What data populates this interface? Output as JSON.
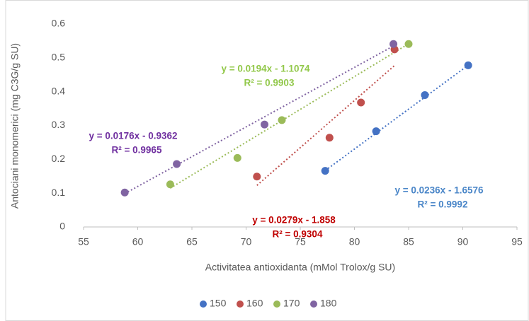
{
  "chart_data": {
    "type": "scatter",
    "x_label": "Activitatea antioxidanta (mMol Trolox/g SU)",
    "y_label": "Antociani monomerici (mg C3G/g SU)",
    "xlim": [
      55,
      95
    ],
    "xticks": [
      55,
      60,
      65,
      70,
      75,
      80,
      85,
      90,
      95
    ],
    "ylim": [
      0,
      0.6
    ],
    "yticks": [
      0,
      0.1,
      0.2,
      0.3,
      0.4,
      0.5,
      0.6
    ],
    "grid": false,
    "legend": "bottom",
    "series": [
      {
        "name": "150",
        "color": "#4472c4",
        "x": [
          77.3,
          82,
          86.5,
          90.5
        ],
        "values": [
          0.166,
          0.283,
          0.39,
          0.478
        ],
        "trendline": {
          "slope": 0.0236,
          "intercept": -1.6576,
          "equation": "y = 0.0236x - 1.6576",
          "r2": "R² = 0.9992",
          "label_color": "#4a86c8"
        }
      },
      {
        "name": "160",
        "color": "#c0504d",
        "x": [
          71,
          77.7,
          80.6,
          83.7
        ],
        "values": [
          0.149,
          0.264,
          0.368,
          0.525
        ],
        "trendline": {
          "slope": 0.0279,
          "intercept": -1.858,
          "equation": "y = 0.0279x - 1.858",
          "r2": "R² = 0.9304",
          "label_color": "#c00000"
        }
      },
      {
        "name": "170",
        "color": "#9bbb59",
        "x": [
          63,
          69.2,
          73.3,
          85
        ],
        "values": [
          0.126,
          0.204,
          0.316,
          0.541
        ],
        "trendline": {
          "slope": 0.0194,
          "intercept": -1.1074,
          "equation": "y = 0.0194x - 1.1074",
          "r2": "R² = 0.9903",
          "label_color": "#92c84a"
        }
      },
      {
        "name": "180",
        "color": "#8064a2",
        "x": [
          58.8,
          63.6,
          71.7,
          83.6
        ],
        "values": [
          0.102,
          0.186,
          0.303,
          0.541
        ],
        "trendline": {
          "slope": 0.0176,
          "intercept": -0.9362,
          "equation": "y = 0.0176x - 0.9362",
          "r2": "R² = 0.9965",
          "label_color": "#7030a0"
        }
      }
    ]
  }
}
